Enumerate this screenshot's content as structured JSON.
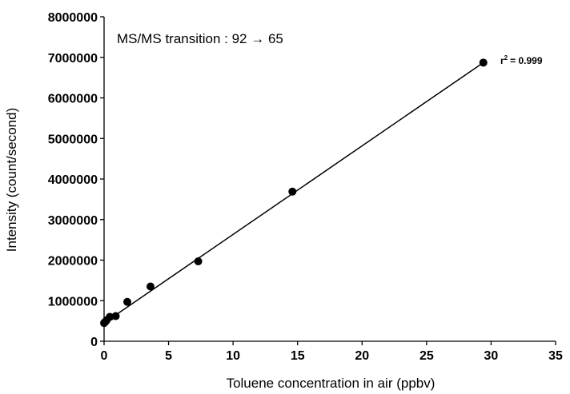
{
  "chart_data": {
    "type": "scatter",
    "xlabel": "Toluene concentration in air (ppbv)",
    "ylabel": "Intensity (count/second)",
    "xlim": [
      0,
      35
    ],
    "ylim": [
      0,
      8000000
    ],
    "xticks": [
      0,
      5,
      10,
      15,
      20,
      25,
      30,
      35
    ],
    "yticks": [
      0,
      1000000,
      2000000,
      3000000,
      4000000,
      5000000,
      6000000,
      7000000,
      8000000
    ],
    "grid": false,
    "annotation": "MS/MS transition : 92 → 65",
    "r2": {
      "prefix": "r",
      "sup": "2",
      "value": "= 0.999"
    },
    "series": [
      {
        "x": [
          0.0,
          0.1,
          0.2,
          0.45,
          0.9,
          1.8,
          3.6,
          7.3,
          14.6,
          29.4
        ],
        "y": [
          450000,
          480000,
          520000,
          600000,
          620000,
          970000,
          1350000,
          1970000,
          3690000,
          6870000
        ]
      }
    ],
    "fit": {
      "type": "linear",
      "x": [
        0,
        29.4
      ],
      "y": [
        450000,
        6870000
      ]
    },
    "marker_color": "#000000"
  }
}
